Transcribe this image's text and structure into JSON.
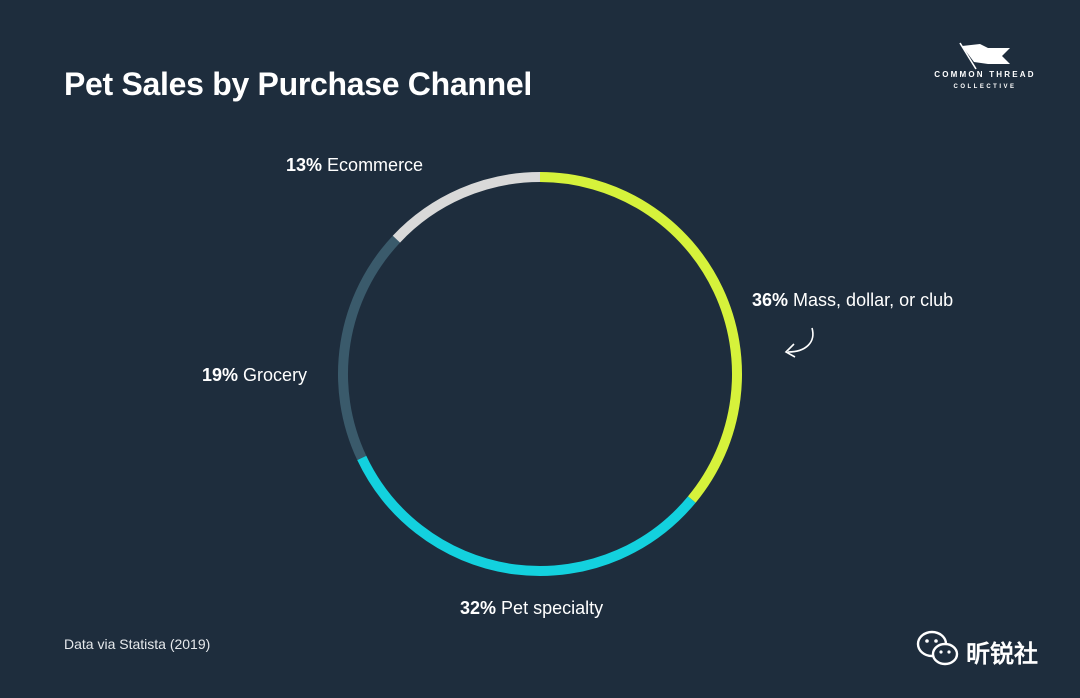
{
  "chart_data": {
    "type": "pie",
    "style": "ring",
    "title": "Pet Sales by Purchase Channel",
    "slices": [
      {
        "name": "Mass, dollar, or club",
        "pct_label": "36%",
        "value": 36,
        "color": "#d6f23b"
      },
      {
        "name": "Pet specialty",
        "pct_label": "32%",
        "value": 32,
        "color": "#13d1de"
      },
      {
        "name": "Grocery",
        "pct_label": "19%",
        "value": 19,
        "color": "#3a5a6b"
      },
      {
        "name": "Ecommerce",
        "pct_label": "13%",
        "value": 13,
        "color": "#d9d9d9"
      }
    ],
    "start": "top",
    "direction": "clockwise"
  },
  "source": "Data via Statista (2019)",
  "logo": {
    "line1": "COMMON THREAD",
    "line2": "COLLECTIVE"
  },
  "watermark": {
    "text": "昕锐社",
    "icon": "wechat-icon"
  },
  "colors": {
    "background": "#1e2d3d",
    "text": "#ffffff"
  }
}
